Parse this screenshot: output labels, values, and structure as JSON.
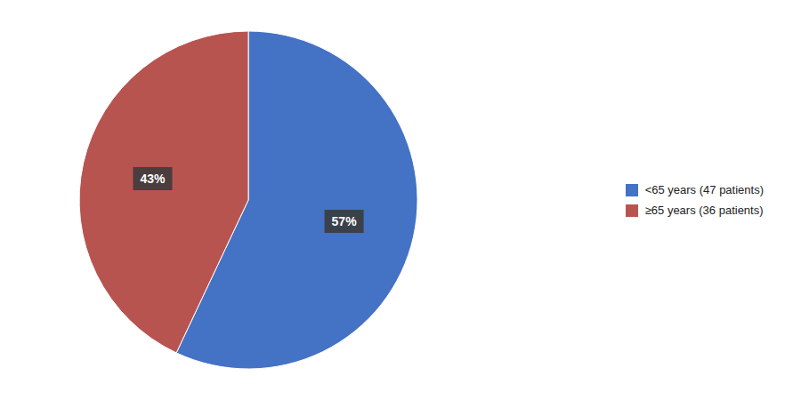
{
  "chart_data": {
    "type": "pie",
    "categories": [
      "<65 years (47 patients)",
      "≥65 years (36 patients)"
    ],
    "values": [
      57,
      43
    ],
    "value_labels": [
      "57%",
      "43%"
    ],
    "colors": [
      "#4472C4",
      "#B85450"
    ],
    "data_labels": true,
    "legend": "right"
  }
}
